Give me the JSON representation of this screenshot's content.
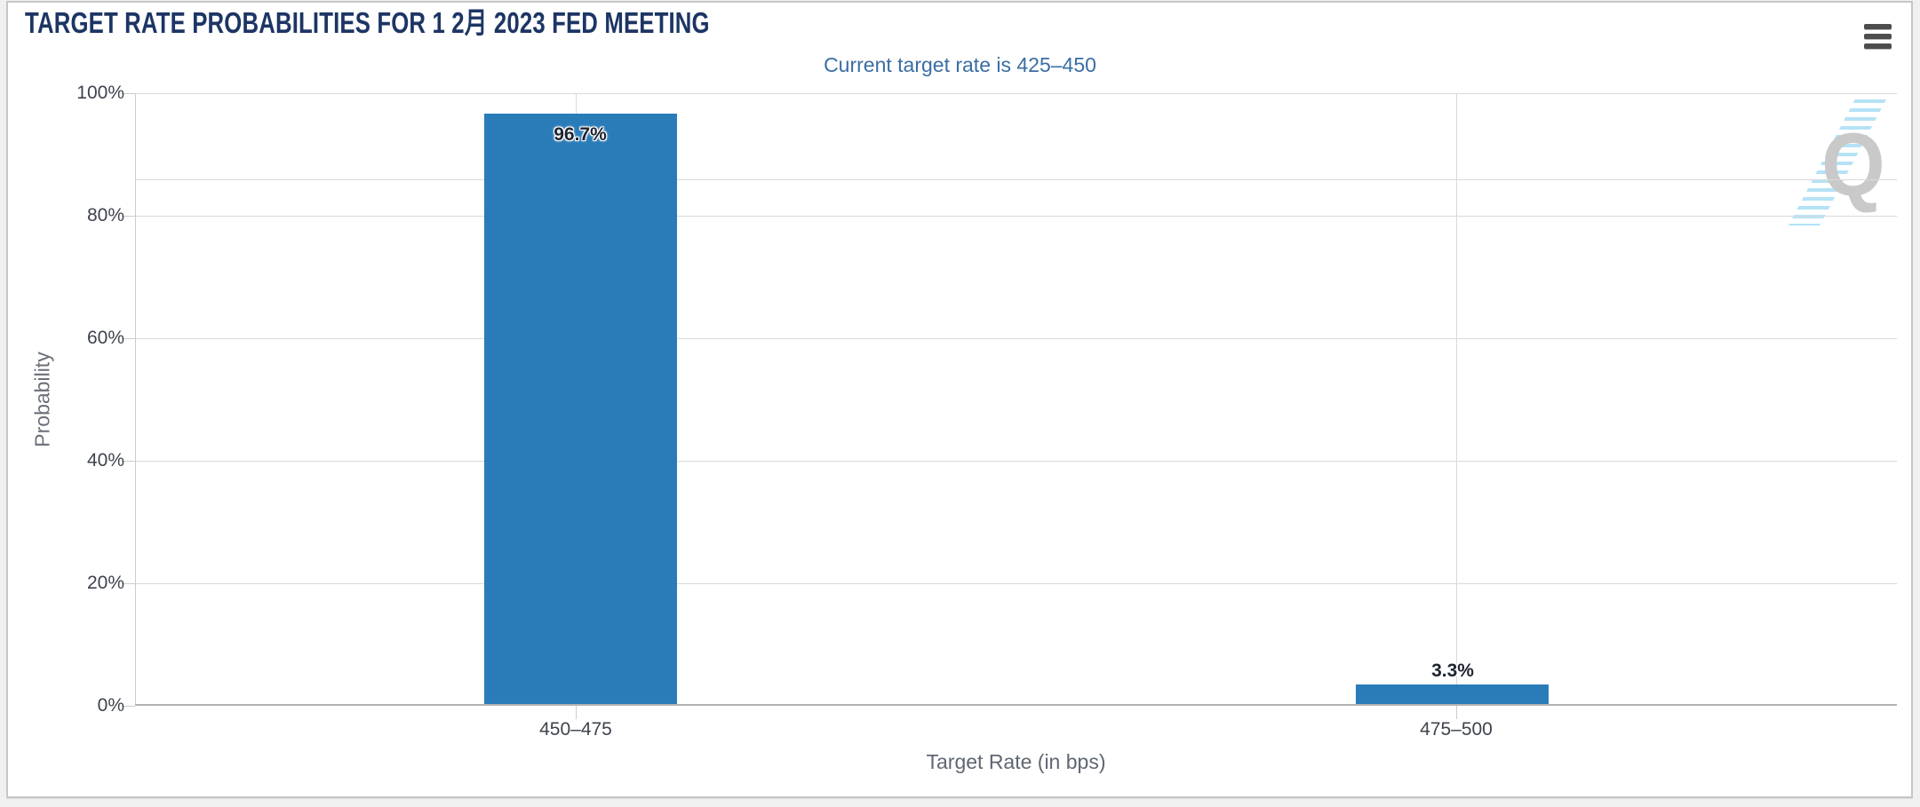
{
  "chart": {
    "menu_tooltip": "Chart context menu",
    "watermark_letter": "Q"
  },
  "chart_data": {
    "type": "bar",
    "title": "TARGET RATE PROBABILITIES FOR 1 2月 2023 FED MEETING",
    "subtitle": "Current target rate is 425–450",
    "categories": [
      "450–475",
      "475–500"
    ],
    "values": [
      96.7,
      3.3
    ],
    "data_labels": [
      "96.7%",
      "3.3%"
    ],
    "xlabel": "Target Rate (in bps)",
    "ylabel": "Probability",
    "ylim": [
      0,
      100
    ],
    "yticks": [
      "100%",
      "80%",
      "60%",
      "40%",
      "20%",
      "0%"
    ],
    "ytick_values": [
      100,
      80,
      60,
      40,
      20,
      0
    ],
    "grid": true,
    "extra_gridline_percent": 86,
    "legend": "none",
    "colors": {
      "bar": "#2a7cb9",
      "title": "#1c3564",
      "subtitle": "#3a6da4",
      "axis_label": "#3f434e",
      "axis_title": "#5f6772",
      "grid": "#d9d9d9",
      "axis_line": "#b3b3b3",
      "datalabel": "#1e2430",
      "watermark": "#c9c9c9",
      "watermark_stripes": "#a8ddf4"
    }
  }
}
